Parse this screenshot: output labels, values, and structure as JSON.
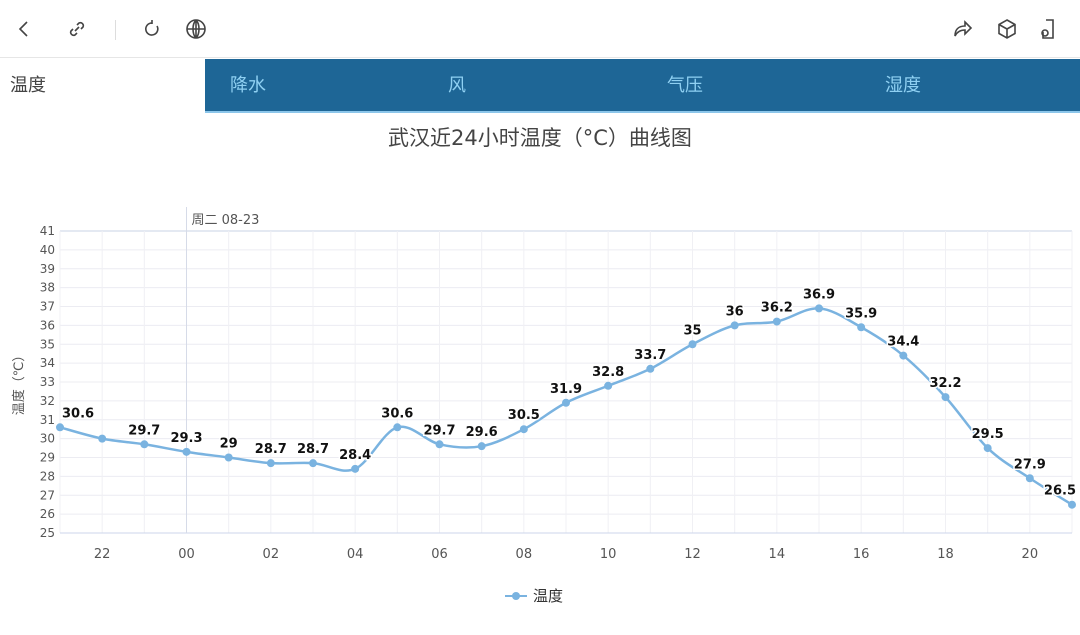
{
  "toolbar": {
    "left_icons": [
      "back-icon",
      "link-icon",
      "refresh-icon",
      "globe-icon"
    ],
    "right_icons": [
      "share-icon",
      "cube-icon",
      "phone-icon"
    ]
  },
  "tabs": [
    {
      "label": "温度",
      "active": true
    },
    {
      "label": "降水"
    },
    {
      "label": "风"
    },
    {
      "label": "气压"
    },
    {
      "label": "湿度"
    }
  ],
  "colors": {
    "tab_bar": "#1e6696",
    "tab_text": "#8fd0f2",
    "series": "#7ab3e0"
  },
  "chart_data": {
    "type": "line",
    "title": "武汉近24小时温度（°C）曲线图",
    "ylabel": "温度（℃）",
    "ylim": [
      25,
      41
    ],
    "yticks": [
      25,
      26,
      27,
      28,
      29,
      30,
      31,
      32,
      33,
      34,
      35,
      36,
      37,
      38,
      39,
      40,
      41
    ],
    "x": [
      "21",
      "22",
      "23",
      "00",
      "01",
      "02",
      "03",
      "04",
      "05",
      "06",
      "07",
      "08",
      "09",
      "10",
      "11",
      "12",
      "13",
      "14",
      "15",
      "16",
      "17",
      "18",
      "19",
      "20",
      "21"
    ],
    "xtick_labels": [
      "22",
      "00",
      "02",
      "04",
      "06",
      "08",
      "10",
      "12",
      "14",
      "16",
      "18",
      "20"
    ],
    "day_marker": {
      "at": "00",
      "label": "周二 08-23"
    },
    "grid": true,
    "legend_placement": "bottom",
    "series": [
      {
        "name": "温度",
        "values": [
          30.6,
          30.0,
          29.7,
          29.3,
          29,
          28.7,
          28.7,
          28.4,
          30.6,
          29.7,
          29.6,
          30.5,
          31.9,
          32.8,
          33.7,
          35,
          36,
          36.2,
          36.9,
          35.9,
          34.4,
          32.2,
          29.5,
          27.9,
          26.5
        ],
        "data_labels": [
          "30.6",
          "",
          "29.7",
          "29.3",
          "29",
          "28.7",
          "28.7",
          "28.4",
          "30.6",
          "29.7",
          "29.6",
          "30.5",
          "31.9",
          "32.8",
          "33.7",
          "35",
          "36",
          "36.2",
          "36.9",
          "35.9",
          "34.4",
          "32.2",
          "29.5",
          "27.9",
          "26.5"
        ]
      }
    ]
  }
}
